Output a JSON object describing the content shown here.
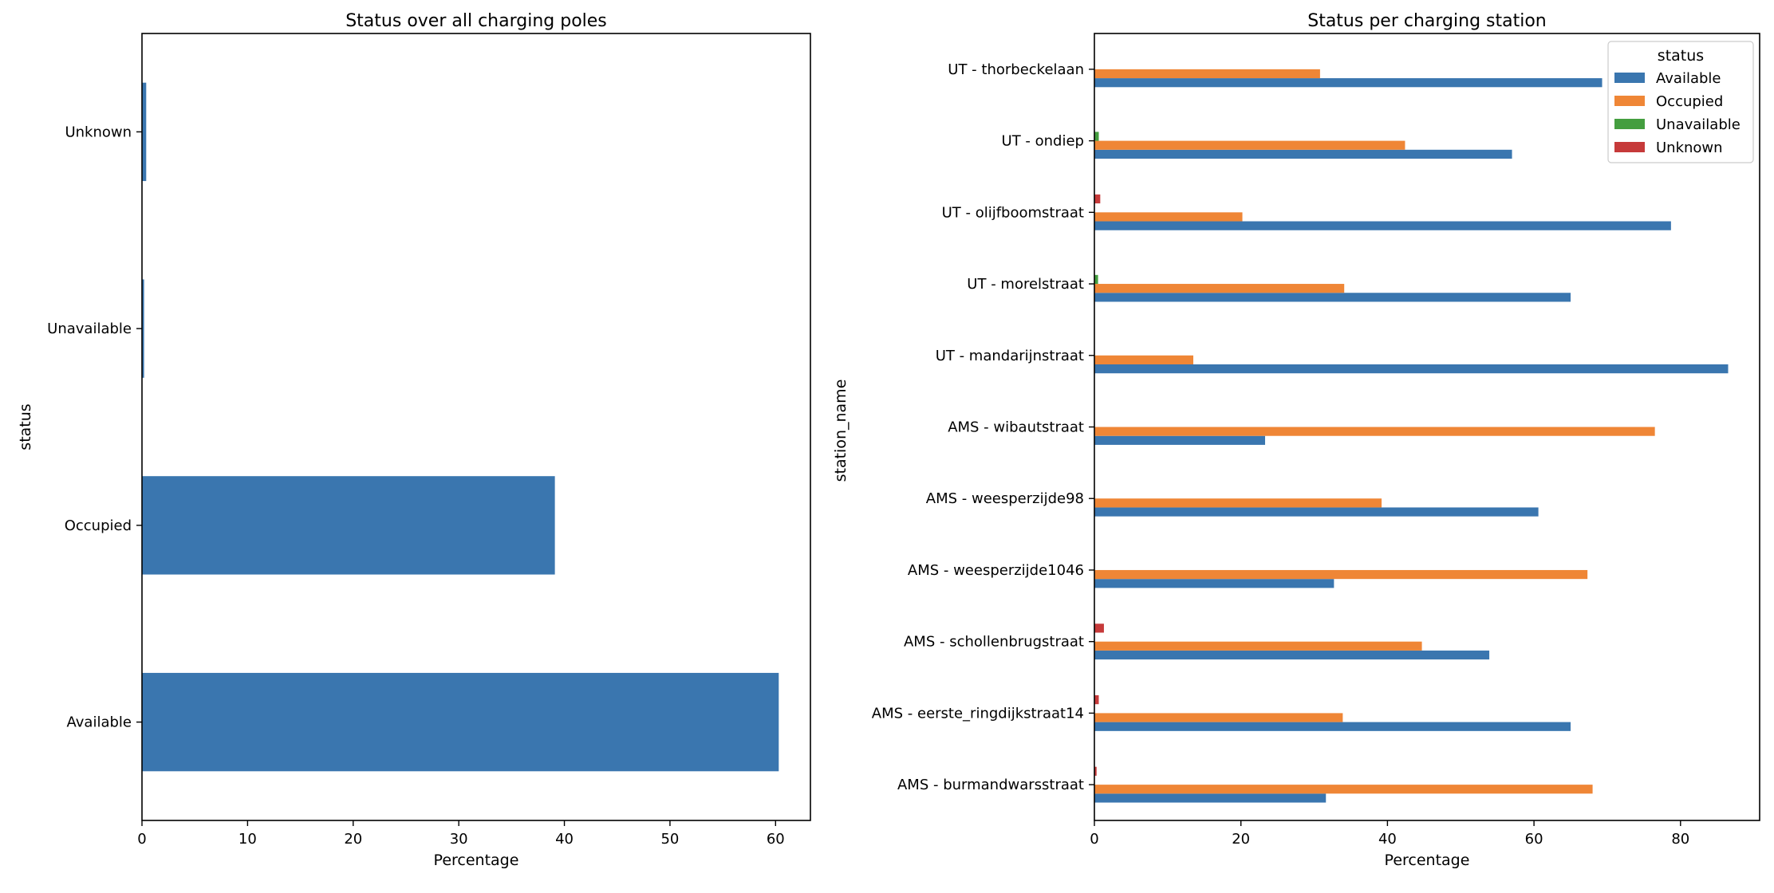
{
  "chart_data": [
    {
      "type": "bar",
      "orientation": "horizontal",
      "title": "Status over all charging poles",
      "xlabel": "Percentage",
      "ylabel": "status",
      "categories": [
        "Available",
        "Occupied",
        "Unavailable",
        "Unknown"
      ],
      "values": [
        60.3,
        39.1,
        0.2,
        0.4
      ],
      "xlim": [
        0,
        63.3
      ],
      "xticks": [
        0,
        10,
        20,
        30,
        40,
        50,
        60
      ],
      "grid": false,
      "color": "#3a76af"
    },
    {
      "type": "bar",
      "orientation": "horizontal",
      "title": "Status per charging station",
      "xlabel": "Percentage",
      "ylabel": "station_name",
      "categories": [
        "AMS - burmandwarsstraat",
        "AMS - eerste_ringdijkstraat14",
        "AMS - schollenbrugstraat",
        "AMS - weesperzijde1046",
        "AMS - weesperzijde98",
        "AMS - wibautstraat",
        "UT - mandarijnstraat",
        "UT - morelstraat",
        "UT - olijfboomstraat",
        "UT - ondiep",
        "UT - thorbeckelaan"
      ],
      "series": [
        {
          "name": "Available",
          "color": "#3a76af",
          "values": [
            31.6,
            65.0,
            53.9,
            32.7,
            60.6,
            23.3,
            86.5,
            65.0,
            78.7,
            57.0,
            69.3
          ]
        },
        {
          "name": "Occupied",
          "color": "#ef8636",
          "values": [
            68.0,
            33.9,
            44.7,
            67.3,
            39.2,
            76.5,
            13.5,
            34.1,
            20.2,
            42.4,
            30.8
          ]
        },
        {
          "name": "Unavailable",
          "color": "#449e3f",
          "values": [
            0,
            0,
            0,
            0,
            0,
            0,
            0,
            0.5,
            0,
            0.6,
            0
          ]
        },
        {
          "name": "Unknown",
          "color": "#c63a3a",
          "values": [
            0.3,
            0.6,
            1.3,
            0,
            0,
            0,
            0,
            0,
            0.8,
            0,
            0
          ]
        }
      ],
      "xlim": [
        0,
        90.8
      ],
      "xticks": [
        0,
        20,
        40,
        60,
        80
      ],
      "grid": false,
      "legend": {
        "title": "status",
        "placement": "top-right"
      }
    }
  ]
}
